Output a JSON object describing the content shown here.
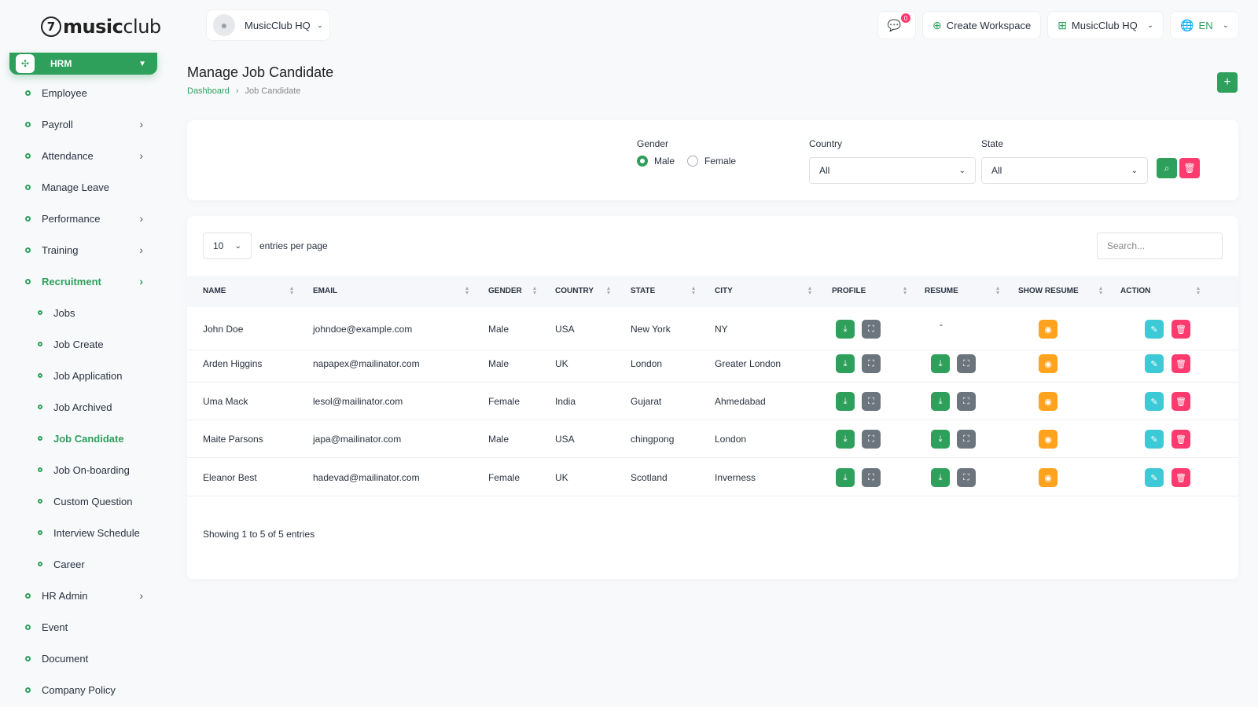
{
  "brand": {
    "logo_mark": "7",
    "name_bold": "music",
    "name_light": "club"
  },
  "sidebar": {
    "module": "HRM",
    "items": [
      {
        "label": "Employee",
        "arrow": false
      },
      {
        "label": "Payroll",
        "arrow": true
      },
      {
        "label": "Attendance",
        "arrow": true
      },
      {
        "label": "Manage Leave",
        "arrow": false
      },
      {
        "label": "Performance",
        "arrow": true
      },
      {
        "label": "Training",
        "arrow": true
      },
      {
        "label": "Recruitment",
        "arrow": true,
        "active": true
      },
      {
        "label": "Jobs",
        "sub": true
      },
      {
        "label": "Job Create",
        "sub": true
      },
      {
        "label": "Job Application",
        "sub": true
      },
      {
        "label": "Job Archived",
        "sub": true
      },
      {
        "label": "Job Candidate",
        "sub": true,
        "active": true
      },
      {
        "label": "Job On-boarding",
        "sub": true
      },
      {
        "label": "Custom Question",
        "sub": true
      },
      {
        "label": "Interview Schedule",
        "sub": true
      },
      {
        "label": "Career",
        "sub": true
      },
      {
        "label": "HR Admin",
        "arrow": true
      },
      {
        "label": "Event",
        "arrow": false
      },
      {
        "label": "Document",
        "arrow": false
      },
      {
        "label": "Company Policy",
        "arrow": false
      }
    ]
  },
  "topbar": {
    "workspace_name": "MusicClub HQ",
    "notification_count": "0",
    "create_workspace": "Create Workspace",
    "workspace_menu": "MusicClub HQ",
    "language": "EN"
  },
  "page": {
    "title": "Manage Job Candidate",
    "breadcrumb_home": "Dashboard",
    "breadcrumb_current": "Job Candidate"
  },
  "filters": {
    "gender_label": "Gender",
    "gender_options": [
      "Male",
      "Female"
    ],
    "gender_selected": "Male",
    "country_label": "Country",
    "country_value": "All",
    "state_label": "State",
    "state_value": "All"
  },
  "table": {
    "per_page": "10",
    "per_page_label": "entries per page",
    "search_placeholder": "Search...",
    "columns": [
      "NAME",
      "EMAIL",
      "GENDER",
      "COUNTRY",
      "STATE",
      "CITY",
      "PROFILE",
      "RESUME",
      "SHOW RESUME",
      "ACTION"
    ],
    "rows": [
      {
        "name": "John Doe",
        "email": "johndoe@example.com",
        "gender": "Male",
        "country": "USA",
        "state": "New York",
        "city": "NY",
        "resume": "-"
      },
      {
        "name": "Arden Higgins",
        "email": "napapex@mailinator.com",
        "gender": "Male",
        "country": "UK",
        "state": "London",
        "city": "Greater London",
        "resume": null
      },
      {
        "name": "Uma Mack",
        "email": "lesol@mailinator.com",
        "gender": "Female",
        "country": "India",
        "state": "Gujarat",
        "city": "Ahmedabad",
        "resume": null
      },
      {
        "name": "Maite Parsons",
        "email": "japa@mailinator.com",
        "gender": "Male",
        "country": "USA",
        "state": "chingpong",
        "city": "London",
        "resume": null
      },
      {
        "name": "Eleanor Best",
        "email": "hadevad@mailinator.com",
        "gender": "Female",
        "country": "UK",
        "state": "Scotland",
        "city": "Inverness",
        "resume": null
      }
    ],
    "footer": "Showing 1 to 5 of 5 entries"
  },
  "colors": {
    "accent": "#2ea05b",
    "danger": "#ff3a6e",
    "warning": "#ffa21d",
    "info": "#3ec9d6",
    "secondary": "#6c757d"
  }
}
